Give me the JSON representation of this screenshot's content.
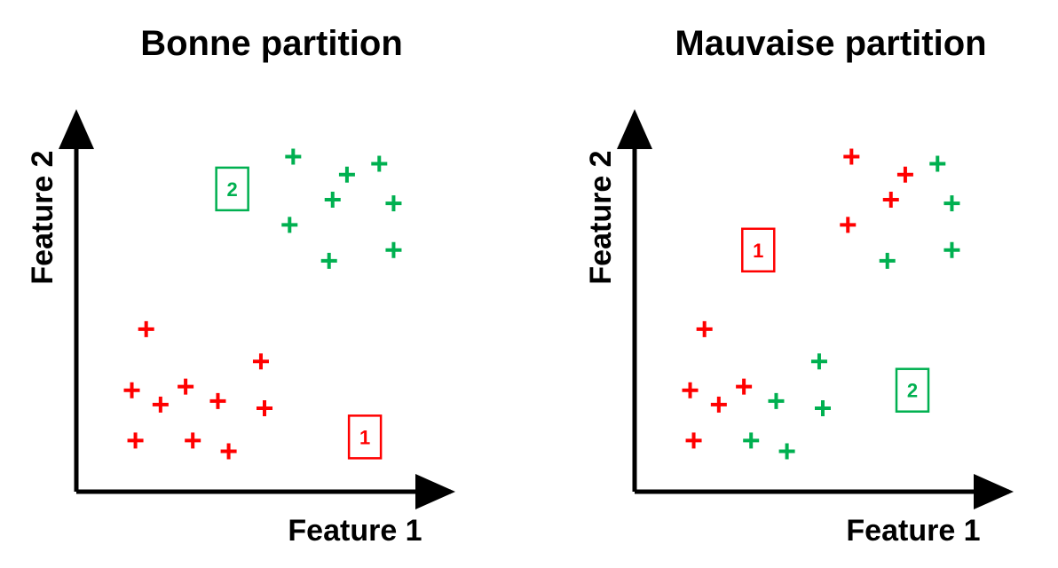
{
  "colors": {
    "cluster_1": "#ff0000",
    "cluster_2": "#00b050",
    "axis": "#000000"
  },
  "chart_data": [
    {
      "type": "scatter",
      "title": "Bonne partition",
      "xlabel": "Feature 1",
      "ylabel": "Feature 2",
      "xlim": [
        0,
        10
      ],
      "ylim": [
        0,
        10
      ],
      "grid": false,
      "ticks": false,
      "series": [
        {
          "name": "1",
          "color": "#ff0000",
          "points": [
            {
              "x": 1.7,
              "y": 4.3
            },
            {
              "x": 1.3,
              "y": 2.6
            },
            {
              "x": 2.1,
              "y": 2.2
            },
            {
              "x": 2.8,
              "y": 2.7
            },
            {
              "x": 1.4,
              "y": 1.2
            },
            {
              "x": 3.0,
              "y": 1.2
            },
            {
              "x": 3.7,
              "y": 2.3
            },
            {
              "x": 4.0,
              "y": 0.9
            },
            {
              "x": 4.9,
              "y": 3.4
            },
            {
              "x": 5.0,
              "y": 2.1
            }
          ]
        },
        {
          "name": "2",
          "color": "#00b050",
          "points": [
            {
              "x": 5.8,
              "y": 9.1
            },
            {
              "x": 7.3,
              "y": 8.6
            },
            {
              "x": 8.2,
              "y": 8.9
            },
            {
              "x": 6.9,
              "y": 7.9
            },
            {
              "x": 8.6,
              "y": 7.8
            },
            {
              "x": 5.7,
              "y": 7.2
            },
            {
              "x": 6.8,
              "y": 6.2
            },
            {
              "x": 8.6,
              "y": 6.5
            }
          ]
        }
      ],
      "annotations": [
        {
          "text": "2",
          "x": 4.1,
          "y": 8.2,
          "color": "#00b050"
        },
        {
          "text": "1",
          "x": 7.8,
          "y": 1.3,
          "color": "#ff0000"
        }
      ]
    },
    {
      "type": "scatter",
      "title": "Mauvaise partition",
      "xlabel": "Feature 1",
      "ylabel": "Feature 2",
      "xlim": [
        0,
        10
      ],
      "ylim": [
        0,
        10
      ],
      "grid": false,
      "ticks": false,
      "series": [
        {
          "name": "1",
          "color": "#ff0000",
          "points": [
            {
              "x": 1.7,
              "y": 4.3
            },
            {
              "x": 1.3,
              "y": 2.6
            },
            {
              "x": 2.1,
              "y": 2.2
            },
            {
              "x": 2.8,
              "y": 2.7
            },
            {
              "x": 1.4,
              "y": 1.2
            },
            {
              "x": 5.8,
              "y": 9.1
            },
            {
              "x": 7.3,
              "y": 8.6
            },
            {
              "x": 6.9,
              "y": 7.9
            },
            {
              "x": 5.7,
              "y": 7.2
            }
          ]
        },
        {
          "name": "2",
          "color": "#00b050",
          "points": [
            {
              "x": 3.0,
              "y": 1.2
            },
            {
              "x": 3.7,
              "y": 2.3
            },
            {
              "x": 4.0,
              "y": 0.9
            },
            {
              "x": 4.9,
              "y": 3.4
            },
            {
              "x": 5.0,
              "y": 2.1
            },
            {
              "x": 8.2,
              "y": 8.9
            },
            {
              "x": 8.6,
              "y": 7.8
            },
            {
              "x": 6.8,
              "y": 6.2
            },
            {
              "x": 8.6,
              "y": 6.5
            }
          ]
        }
      ],
      "annotations": [
        {
          "text": "1",
          "x": 3.2,
          "y": 6.5,
          "color": "#ff0000"
        },
        {
          "text": "2",
          "x": 7.5,
          "y": 2.6,
          "color": "#00b050"
        }
      ]
    }
  ]
}
